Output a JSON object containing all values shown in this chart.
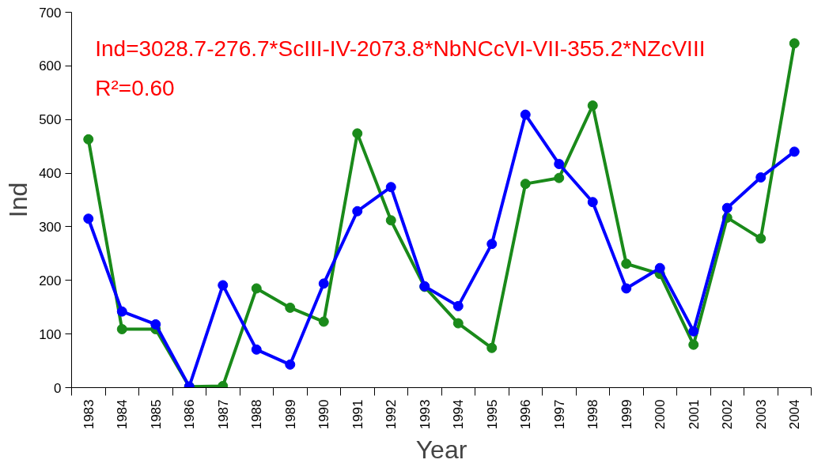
{
  "chart_data": {
    "type": "line",
    "xlabel": "Year",
    "ylabel": "Ind",
    "categories": [
      "1983",
      "1984",
      "1985",
      "1986",
      "1987",
      "1988",
      "1989",
      "1990",
      "1991",
      "1992",
      "1993",
      "1994",
      "1995",
      "1996",
      "1997",
      "1998",
      "1999",
      "2000",
      "2001",
      "2002",
      "2003",
      "2004"
    ],
    "series": [
      {
        "color": "#1a8a1a",
        "values": [
          463,
          109,
          109,
          2,
          3,
          185,
          149,
          123,
          474,
          312,
          188,
          120,
          74,
          380,
          391,
          526,
          231,
          212,
          80,
          317,
          278,
          642
        ]
      },
      {
        "color": "#0000ff",
        "values": [
          315,
          142,
          118,
          2,
          191,
          71,
          43,
          194,
          329,
          374,
          189,
          152,
          268,
          509,
          417,
          346,
          185,
          223,
          105,
          335,
          392,
          440
        ]
      }
    ],
    "ylim": [
      0,
      700
    ],
    "yticks": [
      0,
      100,
      200,
      300,
      400,
      500,
      600,
      700
    ],
    "marker": "circle",
    "line_style": "solid",
    "grid": false,
    "annotations": [
      "Ind=3028.7-276.7*ScIII-IV-2073.8*NbNCcVI-VII-355.2*NZcVIII",
      "R²=0.60"
    ]
  }
}
